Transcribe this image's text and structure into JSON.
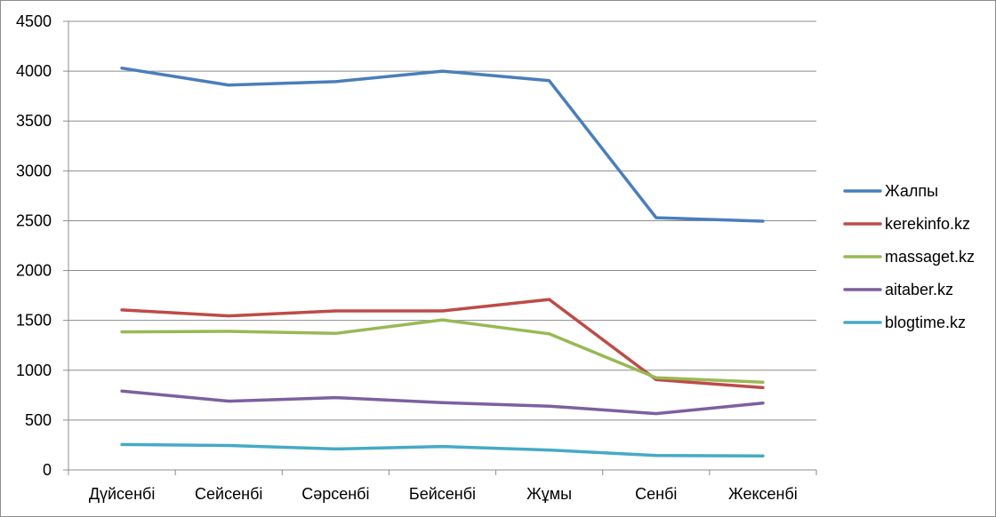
{
  "chart_data": {
    "type": "line",
    "categories": [
      "Дүйсенбі",
      "Сейсенбі",
      "Сәрсенбі",
      "Бейсенбі",
      "Жұмы",
      "Сенбі",
      "Жексенбі"
    ],
    "ylim": [
      0,
      4500
    ],
    "yticks": [
      0,
      500,
      1000,
      1500,
      2000,
      2500,
      3000,
      3500,
      4000,
      4500
    ],
    "grid": true,
    "legend_position": "right",
    "series": [
      {
        "name": "Жалпы",
        "color": "#4a7ebb",
        "values": [
          4030,
          3860,
          3895,
          4000,
          3905,
          2530,
          2495
        ]
      },
      {
        "name": "kerekinfo.kz",
        "color": "#be4b48",
        "values": [
          1605,
          1545,
          1595,
          1595,
          1710,
          905,
          825
        ]
      },
      {
        "name": "massaget.kz",
        "color": "#98b954",
        "values": [
          1385,
          1390,
          1370,
          1505,
          1365,
          925,
          880
        ]
      },
      {
        "name": "aitaber.kz",
        "color": "#7d5fa0",
        "values": [
          790,
          690,
          725,
          675,
          640,
          565,
          670
        ]
      },
      {
        "name": "blogtime.kz",
        "color": "#46aac5",
        "values": [
          255,
          245,
          210,
          235,
          200,
          145,
          140
        ]
      }
    ]
  }
}
